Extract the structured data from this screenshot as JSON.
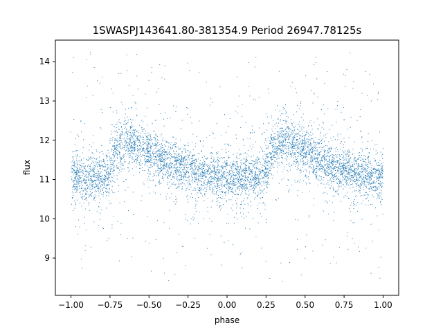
{
  "chart_data": {
    "type": "scatter",
    "title": "1SWASPJ143641.80-381354.9 Period 26947.78125s",
    "xlabel": "phase",
    "ylabel": "flux",
    "xlim": [
      -1.1,
      1.1
    ],
    "ylim": [
      8.05,
      14.55
    ],
    "x_ticks": [
      "−1.00",
      "−0.75",
      "−0.50",
      "−0.25",
      "0.00",
      "0.25",
      "0.50",
      "0.75",
      "1.00"
    ],
    "x_tick_values": [
      -1.0,
      -0.75,
      -0.5,
      -0.25,
      0.0,
      0.25,
      0.5,
      0.75,
      1.0
    ],
    "y_ticks": [
      "9",
      "10",
      "11",
      "12",
      "13",
      "14"
    ],
    "y_tick_values": [
      9,
      10,
      11,
      12,
      13,
      14
    ],
    "grid": false,
    "point_color": "#1f77b4",
    "series": [
      {
        "name": "",
        "phase_range": [
          -1.0,
          1.0
        ],
        "mean_flux_curve": {
          "phase": [
            -1.0,
            -0.9,
            -0.8,
            -0.75,
            -0.7,
            -0.65,
            -0.6,
            -0.55,
            -0.5,
            -0.4,
            -0.3,
            -0.2,
            -0.1,
            0.0,
            0.1,
            0.2,
            0.25,
            0.3,
            0.35,
            0.4,
            0.45,
            0.5,
            0.6,
            0.7,
            0.8,
            0.9,
            1.0
          ],
          "flux": [
            11.05,
            11.05,
            11.05,
            11.2,
            11.85,
            12.0,
            11.95,
            11.85,
            11.7,
            11.45,
            11.3,
            11.2,
            11.1,
            11.05,
            11.05,
            11.05,
            11.2,
            11.85,
            12.0,
            11.95,
            11.85,
            11.7,
            11.45,
            11.3,
            11.2,
            11.1,
            11.05
          ]
        },
        "flux_range": [
          8.4,
          14.3
        ]
      }
    ]
  }
}
